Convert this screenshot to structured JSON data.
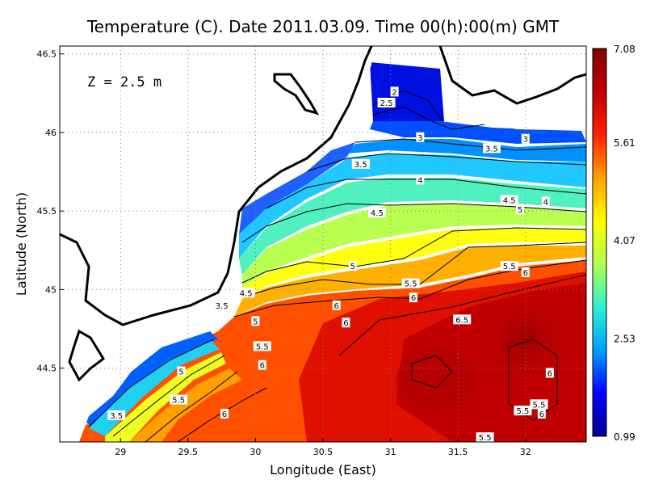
{
  "chart_data": {
    "type": "heatmap",
    "title": "Temperature (C). Date 2011.03.09. Time 00(h):00(m) GMT",
    "xlabel": "Longitude (East)",
    "ylabel": "Latitude (North)",
    "depth_annotation": "Z = 2.5 m",
    "xlim": [
      28.55,
      32.45
    ],
    "ylim": [
      44.03,
      46.55
    ],
    "x_ticks": [
      {
        "value": 29,
        "label": "29"
      },
      {
        "value": 29.5,
        "label": "29.5"
      },
      {
        "value": 30,
        "label": "30"
      },
      {
        "value": 30.5,
        "label": "30.5"
      },
      {
        "value": 31,
        "label": "31"
      },
      {
        "value": 31.5,
        "label": "31.5"
      },
      {
        "value": 32,
        "label": "32"
      }
    ],
    "y_ticks": [
      {
        "value": 44.5,
        "label": "44.5"
      },
      {
        "value": 45,
        "label": "45"
      },
      {
        "value": 45.5,
        "label": "45.5"
      },
      {
        "value": 46,
        "label": "46"
      },
      {
        "value": 46.5,
        "label": "46.5"
      }
    ],
    "grid": true,
    "colorbar": {
      "min": 0.99,
      "max": 7.08,
      "tick_labels": [
        "7.08",
        "5.61",
        "4.07",
        "2.53",
        "0.99"
      ],
      "tick_values": [
        7.08,
        5.61,
        4.07,
        2.53,
        0.99
      ],
      "colors": [
        "#000090",
        "#0000ff",
        "#00a0ff",
        "#30f0d0",
        "#b0ff50",
        "#ffff00",
        "#ffa000",
        "#ff2000",
        "#c00000",
        "#800000"
      ]
    },
    "contour_levels": [
      2,
      2.5,
      3,
      3.5,
      4,
      4.5,
      5,
      5.5,
      6,
      6.5
    ],
    "contour_labels": [
      {
        "lon": 31.03,
        "lat": 46.26,
        "text": "2"
      },
      {
        "lon": 30.97,
        "lat": 46.19,
        "text": "2.5"
      },
      {
        "lon": 31.22,
        "lat": 45.97,
        "text": "3"
      },
      {
        "lon": 32.0,
        "lat": 45.96,
        "text": "3"
      },
      {
        "lon": 31.75,
        "lat": 45.9,
        "text": "3.5"
      },
      {
        "lon": 30.78,
        "lat": 45.8,
        "text": "3.5"
      },
      {
        "lon": 31.22,
        "lat": 45.7,
        "text": "4"
      },
      {
        "lon": 32.15,
        "lat": 45.56,
        "text": "4"
      },
      {
        "lon": 31.88,
        "lat": 45.57,
        "text": "4.5"
      },
      {
        "lon": 30.9,
        "lat": 45.49,
        "text": "4.5"
      },
      {
        "lon": 31.96,
        "lat": 45.51,
        "text": "5"
      },
      {
        "lon": 31.88,
        "lat": 45.15,
        "text": "5.5"
      },
      {
        "lon": 32.0,
        "lat": 45.11,
        "text": "6"
      },
      {
        "lon": 30.72,
        "lat": 45.15,
        "text": "5"
      },
      {
        "lon": 31.15,
        "lat": 45.04,
        "text": "5.5"
      },
      {
        "lon": 31.17,
        "lat": 44.95,
        "text": "6"
      },
      {
        "lon": 30.6,
        "lat": 44.9,
        "text": "6"
      },
      {
        "lon": 31.53,
        "lat": 44.81,
        "text": "6.5"
      },
      {
        "lon": 30.67,
        "lat": 44.79,
        "text": "6"
      },
      {
        "lon": 29.93,
        "lat": 44.98,
        "text": "4.5"
      },
      {
        "lon": 29.75,
        "lat": 44.9,
        "text": "3.5"
      },
      {
        "lon": 30.0,
        "lat": 44.8,
        "text": "5"
      },
      {
        "lon": 30.05,
        "lat": 44.64,
        "text": "5.5"
      },
      {
        "lon": 30.05,
        "lat": 44.52,
        "text": "6"
      },
      {
        "lon": 29.45,
        "lat": 44.48,
        "text": "5"
      },
      {
        "lon": 29.43,
        "lat": 44.3,
        "text": "5.5"
      },
      {
        "lon": 29.77,
        "lat": 44.21,
        "text": "6"
      },
      {
        "lon": 28.97,
        "lat": 44.2,
        "text": "3.5"
      },
      {
        "lon": 32.18,
        "lat": 44.47,
        "text": "6"
      },
      {
        "lon": 32.1,
        "lat": 44.27,
        "text": "5.5"
      },
      {
        "lon": 31.98,
        "lat": 44.23,
        "text": "5.5"
      },
      {
        "lon": 32.12,
        "lat": 44.21,
        "text": "6"
      },
      {
        "lon": 31.7,
        "lat": 44.06,
        "text": "5.5"
      }
    ]
  }
}
